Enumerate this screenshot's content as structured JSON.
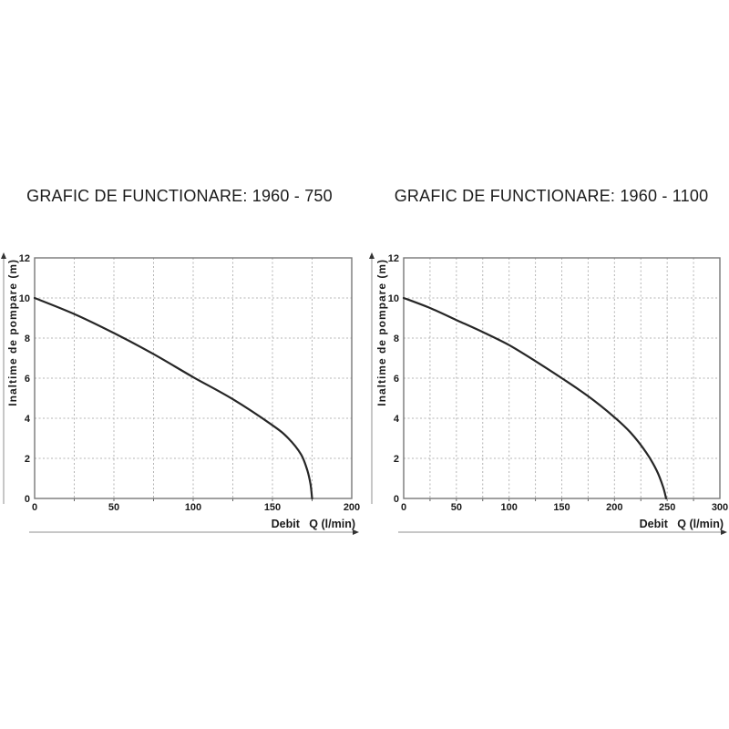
{
  "page": {
    "background": "#ffffff"
  },
  "chart_data": [
    {
      "type": "line",
      "title": "GRAFIC DE FUNCTIONARE: 1960 - 750",
      "xlabel": "Debit   Q (l/min)",
      "ylabel": "Inaltime de pompare (m)",
      "xlim": [
        0,
        200
      ],
      "ylim": [
        0,
        12
      ],
      "x_ticks": [
        0,
        50,
        100,
        150,
        200
      ],
      "y_ticks": [
        0,
        2,
        4,
        6,
        8,
        10,
        12
      ],
      "grid": {
        "on": true,
        "x_step": 25,
        "y_step": 2,
        "style": "dashed"
      },
      "legend": "none",
      "series": [
        {
          "name": "head-vs-flow",
          "points": [
            [
              0,
              10.0
            ],
            [
              25,
              9.2
            ],
            [
              50,
              8.25
            ],
            [
              75,
              7.2
            ],
            [
              100,
              6.05
            ],
            [
              125,
              4.95
            ],
            [
              150,
              3.65
            ],
            [
              160,
              3.0
            ],
            [
              168,
              2.2
            ],
            [
              172,
              1.4
            ],
            [
              174,
              0.7
            ],
            [
              175,
              0.0
            ]
          ]
        }
      ],
      "colors": {
        "curve": "#262626",
        "grid": "#b4b4b4",
        "border": "#777777",
        "text": "#1a1a1a",
        "arrow_line": "#8f8f8f",
        "arrow_head": "#333333"
      }
    },
    {
      "type": "line",
      "title": "GRAFIC DE FUNCTIONARE: 1960 - 1100",
      "xlabel": "Debit   Q (l/min)",
      "ylabel": "Inaltime de pompare (m)",
      "xlim": [
        0,
        300
      ],
      "ylim": [
        0,
        12
      ],
      "x_ticks": [
        0,
        50,
        100,
        150,
        200,
        250,
        300
      ],
      "y_ticks": [
        0,
        2,
        4,
        6,
        8,
        10,
        12
      ],
      "grid": {
        "on": true,
        "x_step": 25,
        "y_step": 2,
        "style": "dashed"
      },
      "legend": "none",
      "series": [
        {
          "name": "head-vs-flow",
          "points": [
            [
              0,
              10.0
            ],
            [
              25,
              9.5
            ],
            [
              50,
              8.9
            ],
            [
              75,
              8.3
            ],
            [
              100,
              7.65
            ],
            [
              125,
              6.85
            ],
            [
              150,
              6.0
            ],
            [
              175,
              5.1
            ],
            [
              200,
              4.05
            ],
            [
              215,
              3.3
            ],
            [
              230,
              2.3
            ],
            [
              240,
              1.4
            ],
            [
              246,
              0.6
            ],
            [
              249,
              0.0
            ]
          ]
        }
      ],
      "colors": {
        "curve": "#262626",
        "grid": "#b4b4b4",
        "border": "#777777",
        "text": "#1a1a1a",
        "arrow_line": "#8f8f8f",
        "arrow_head": "#333333"
      }
    }
  ]
}
